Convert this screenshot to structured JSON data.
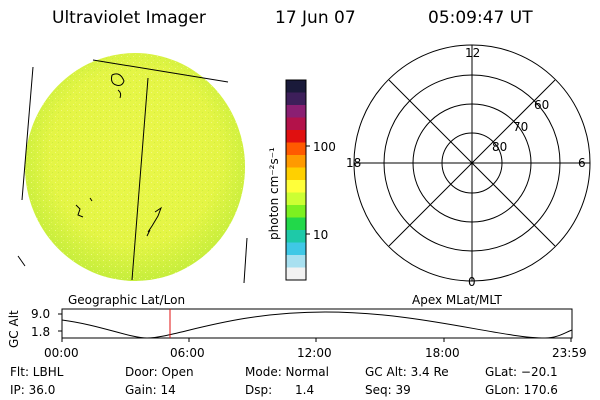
{
  "header": {
    "instrument": "Ultraviolet Imager",
    "date": "17 Jun 07",
    "time": "05:09:47 UT"
  },
  "colorbar": {
    "unit_label": "photon cm⁻²s⁻¹",
    "tick_labels": [
      "100",
      "10"
    ],
    "tick_values": [
      100,
      10
    ],
    "scale": "log",
    "colors_top_to_bottom": [
      "#1a1a3a",
      "#3d1f5a",
      "#8a1f72",
      "#b3124a",
      "#e01010",
      "#ff5a00",
      "#ff9a00",
      "#ffd000",
      "#ffff3a",
      "#ccff33",
      "#7cf020",
      "#22d84a",
      "#1ec9a8",
      "#3fc8e6",
      "#a8e0f0",
      "#f2f2f2"
    ]
  },
  "image_panel": {
    "label": "Geographic Lat/Lon",
    "disk_color": "#e6f542",
    "disk_edge_color": "#c8ef3c"
  },
  "polar_plot": {
    "label": "Apex MLat/MLT",
    "mlt_labels": [
      "12",
      "18",
      "6",
      "0"
    ],
    "mlat_labels": [
      "60",
      "70",
      "80"
    ]
  },
  "timeline": {
    "y_axis_label": "GC Alt",
    "y_ticks": [
      "9.0",
      "1.8"
    ],
    "x_ticks": [
      "00:00",
      "06:00",
      "12:00",
      "18:00",
      "23:59"
    ],
    "current_marker_color": "#e01010"
  },
  "status": {
    "flt": "Flt: LBHL",
    "ip": "IP: 36.0",
    "door": "Door: Open",
    "gain": "Gain: 14",
    "mode": "Mode: Normal",
    "dsp": "Dsp:      1.4",
    "gc_alt": "GC Alt: 3.4 Re",
    "seq": "Seq: 39",
    "glat": "GLat: −20.1",
    "glon": "GLon: 170.6"
  }
}
